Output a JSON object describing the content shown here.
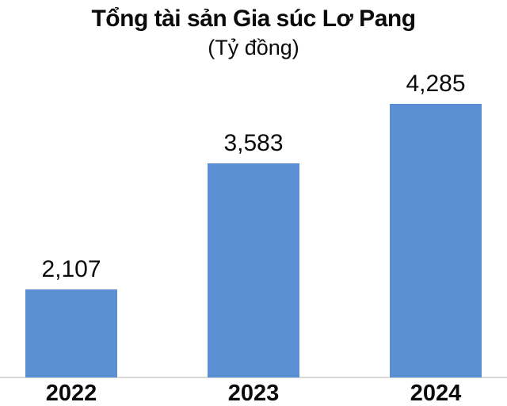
{
  "chart_data": {
    "type": "bar",
    "title": "Tổng tài sản Gia súc Lơ Pang",
    "subtitle": "(Tỷ đồng)",
    "unit": "Tỷ đồng",
    "categories": [
      "2022",
      "2023",
      "2024"
    ],
    "values": [
      2107,
      3583,
      4285
    ],
    "value_labels": [
      "2,107",
      "3,583",
      "4,285"
    ],
    "series": [
      {
        "name": "Tổng tài sản",
        "values": [
          2107,
          3583,
          4285
        ]
      }
    ],
    "ylim": [
      1070,
      4285
    ],
    "grid": false,
    "legend_position": "none",
    "value_axis_visible": false,
    "bar_color": "#5b8fd4",
    "axis_line_color": "#d9d9d9",
    "text_color": "#0a0a0a"
  }
}
